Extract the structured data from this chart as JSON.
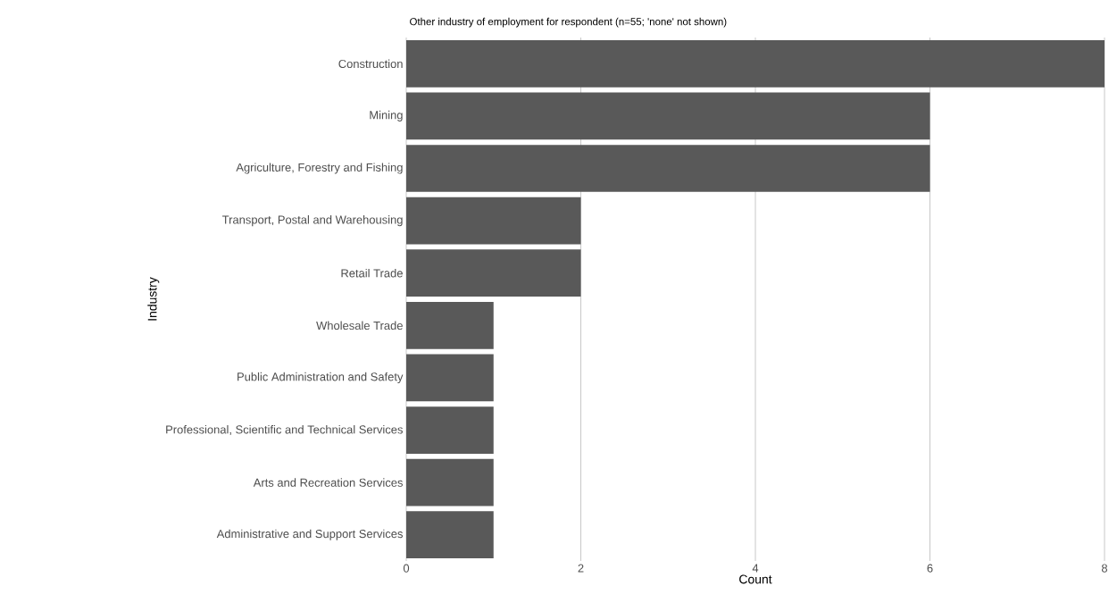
{
  "chart_data": {
    "type": "bar",
    "orientation": "horizontal",
    "title": "Other industry of employment for respondent (n=55; 'none' not shown)",
    "xlabel": "Count",
    "ylabel": "Industry",
    "categories": [
      "Construction",
      "Mining",
      "Agriculture, Forestry and Fishing",
      "Transport, Postal and Warehousing",
      "Retail Trade",
      "Wholesale Trade",
      "Public Administration and Safety",
      "Professional, Scientific and Technical Services",
      "Arts and Recreation Services",
      "Administrative and Support Services"
    ],
    "values": [
      8,
      6,
      6,
      2,
      2,
      1,
      1,
      1,
      1,
      1
    ],
    "color": "#595959",
    "xlim": [
      0,
      8
    ],
    "xticks": [
      0,
      2,
      4,
      6,
      8
    ],
    "grid": "x"
  }
}
